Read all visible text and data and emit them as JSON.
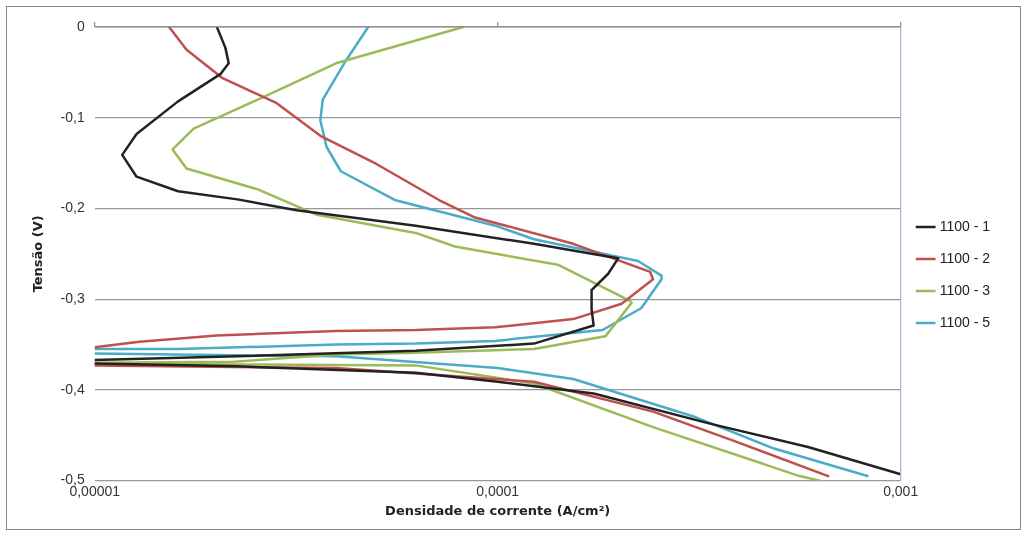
{
  "chart_data": {
    "type": "line",
    "xlabel": "Densidade de corrente (A/cm²)",
    "ylabel": "Tensão (V)",
    "log": "x",
    "grid": "y",
    "legend": "right",
    "marker": "none",
    "line_style": "solid",
    "xlim": [
      1e-05,
      0.001
    ],
    "xticks": [
      {
        "value": 1e-05,
        "label": "0,00001"
      },
      {
        "value": 0.0001,
        "label": "0,0001"
      },
      {
        "value": 0.001,
        "label": "0,001"
      }
    ],
    "ylim": [
      -0.5,
      0
    ],
    "yticks": [
      {
        "value": -0.5,
        "label": "-0,5"
      },
      {
        "value": -0.4,
        "label": "-0,4"
      },
      {
        "value": -0.3,
        "label": "-0,3"
      },
      {
        "value": -0.2,
        "label": "-0,2"
      },
      {
        "value": -0.1,
        "label": "-0,1"
      },
      0
    ],
    "series": [
      {
        "name": "1100 - 1",
        "color": "#222222",
        "x": [
          2.01e-05,
          2.11e-05,
          2.15e-05,
          2.05e-05,
          1.61e-05,
          1.27e-05,
          1.17e-05,
          1.27e-05,
          1.61e-05,
          2.26e-05,
          3.17e-05,
          6.26e-05,
          0.000123,
          0.000199,
          0.000188,
          0.000171,
          0.000171,
          0.000173,
          0.000123,
          6.26e-05,
          2.26e-05,
          1e-05,
          null,
          1e-05,
          2.26e-05,
          6.26e-05,
          0.0001,
          0.000173,
          0.000342,
          0.000589,
          0.001
        ],
        "values": [
          0,
          -0.023,
          -0.04,
          -0.052,
          -0.082,
          -0.118,
          -0.141,
          -0.165,
          -0.181,
          -0.19,
          -0.202,
          -0.219,
          -0.239,
          -0.255,
          -0.272,
          -0.29,
          -0.311,
          -0.329,
          -0.349,
          -0.357,
          -0.363,
          -0.367,
          null,
          -0.371,
          -0.374,
          -0.381,
          -0.391,
          -0.404,
          -0.438,
          -0.463,
          -0.493
        ]
      },
      {
        "name": "1100 - 2",
        "color": "#c0504d",
        "x": [
          1.53e-05,
          1.69e-05,
          2.07e-05,
          2.83e-05,
          3.63e-05,
          5e-05,
          7.17e-05,
          8.79e-05,
          0.000154,
          0.000239,
          0.000243,
          0.000203,
          0.000154,
          9.86e-05,
          6.26e-05,
          3.97e-05,
          2.01e-05,
          1.29e-05,
          1e-05,
          null,
          1e-05,
          3.97e-05,
          0.000123,
          0.000243,
          0.000384,
          0.000661
        ],
        "values": [
          0,
          -0.025,
          -0.056,
          -0.084,
          -0.12,
          -0.151,
          -0.191,
          -0.21,
          -0.239,
          -0.27,
          -0.278,
          -0.305,
          -0.322,
          -0.331,
          -0.334,
          -0.335,
          -0.34,
          -0.347,
          -0.353,
          null,
          -0.373,
          -0.376,
          -0.391,
          -0.424,
          -0.456,
          -0.495
        ]
      },
      {
        "name": "1100 - 3",
        "color": "#9bbb59",
        "x": [
          8.21e-05,
          3.97e-05,
          2.54e-05,
          1.76e-05,
          1.56e-05,
          1.69e-05,
          2.54e-05,
          3.56e-05,
          6.26e-05,
          7.83e-05,
          0.000141,
          0.000213,
          0.000215,
          0.000185,
          0.000123,
          6.26e-05,
          3.97e-05,
          2.21e-05,
          1e-05,
          null,
          1e-05,
          6.26e-05,
          0.000123,
          0.000243,
          0.000561,
          0.00063
        ],
        "values": [
          0,
          -0.04,
          -0.08,
          -0.112,
          -0.135,
          -0.156,
          -0.179,
          -0.207,
          -0.227,
          -0.242,
          -0.262,
          -0.302,
          -0.304,
          -0.341,
          -0.355,
          -0.359,
          -0.361,
          -0.369,
          -0.37,
          null,
          -0.371,
          -0.373,
          -0.393,
          -0.441,
          -0.495,
          -0.5
        ]
      },
      {
        "name": "1100 - 5",
        "color": "#4bacc6",
        "x": [
          4.77e-05,
          4.16e-05,
          3.68e-05,
          3.63e-05,
          3.76e-05,
          4.08e-05,
          5.58e-05,
          9.86e-05,
          0.000123,
          0.000223,
          0.000255,
          0.000255,
          0.000227,
          0.000182,
          9.86e-05,
          6.26e-05,
          3.97e-05,
          1.61e-05,
          1e-05,
          null,
          1e-05,
          3.97e-05,
          0.0001,
          0.000154,
          0.000305,
          0.00048,
          0.000827
        ],
        "values": [
          0,
          -0.04,
          -0.08,
          -0.103,
          -0.132,
          -0.159,
          -0.191,
          -0.219,
          -0.234,
          -0.258,
          -0.274,
          -0.278,
          -0.31,
          -0.334,
          -0.346,
          -0.349,
          -0.35,
          -0.355,
          -0.355,
          null,
          -0.36,
          -0.363,
          -0.376,
          -0.388,
          -0.429,
          -0.464,
          -0.495
        ]
      }
    ]
  }
}
